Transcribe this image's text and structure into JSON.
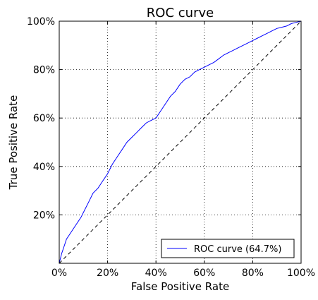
{
  "chart_data": {
    "type": "line",
    "title": "ROC curve",
    "xlabel": "False Positive Rate",
    "ylabel": "True Positive Rate",
    "xlim": [
      0,
      1
    ],
    "ylim": [
      0,
      1
    ],
    "grid": true,
    "legend_position": "bottom-right",
    "xticks": [
      {
        "value": 0.0,
        "label": "0%"
      },
      {
        "value": 0.2,
        "label": "20%"
      },
      {
        "value": 0.4,
        "label": "40%"
      },
      {
        "value": 0.6,
        "label": "60%"
      },
      {
        "value": 0.8,
        "label": "80%"
      },
      {
        "value": 1.0,
        "label": "100%"
      }
    ],
    "yticks": [
      {
        "value": 0.2,
        "label": "20%"
      },
      {
        "value": 0.4,
        "label": "40%"
      },
      {
        "value": 0.6,
        "label": "60%"
      },
      {
        "value": 0.8,
        "label": "80%"
      },
      {
        "value": 1.0,
        "label": "100%"
      }
    ],
    "series": [
      {
        "name": "ROC curve (64.7%)",
        "color": "#0000ff",
        "style": "solid",
        "x": [
          0.0,
          0.005,
          0.01,
          0.02,
          0.03,
          0.05,
          0.07,
          0.09,
          0.1,
          0.12,
          0.14,
          0.16,
          0.18,
          0.2,
          0.22,
          0.24,
          0.26,
          0.28,
          0.3,
          0.32,
          0.34,
          0.36,
          0.38,
          0.4,
          0.42,
          0.44,
          0.46,
          0.48,
          0.5,
          0.52,
          0.54,
          0.56,
          0.58,
          0.6,
          0.62,
          0.64,
          0.66,
          0.68,
          0.7,
          0.72,
          0.74,
          0.76,
          0.78,
          0.8,
          0.82,
          0.84,
          0.86,
          0.88,
          0.9,
          0.92,
          0.94,
          0.96,
          0.98,
          1.0
        ],
        "y": [
          0.0,
          0.02,
          0.04,
          0.07,
          0.1,
          0.13,
          0.16,
          0.19,
          0.21,
          0.25,
          0.29,
          0.31,
          0.34,
          0.37,
          0.41,
          0.44,
          0.47,
          0.5,
          0.52,
          0.54,
          0.56,
          0.58,
          0.59,
          0.6,
          0.63,
          0.66,
          0.69,
          0.71,
          0.74,
          0.76,
          0.77,
          0.79,
          0.8,
          0.81,
          0.82,
          0.83,
          0.845,
          0.86,
          0.87,
          0.88,
          0.89,
          0.9,
          0.91,
          0.92,
          0.93,
          0.94,
          0.95,
          0.96,
          0.97,
          0.975,
          0.98,
          0.99,
          0.995,
          1.0
        ]
      },
      {
        "name": "",
        "color": "#000000",
        "style": "dashed",
        "x": [
          0,
          1
        ],
        "y": [
          0,
          1
        ]
      }
    ]
  }
}
